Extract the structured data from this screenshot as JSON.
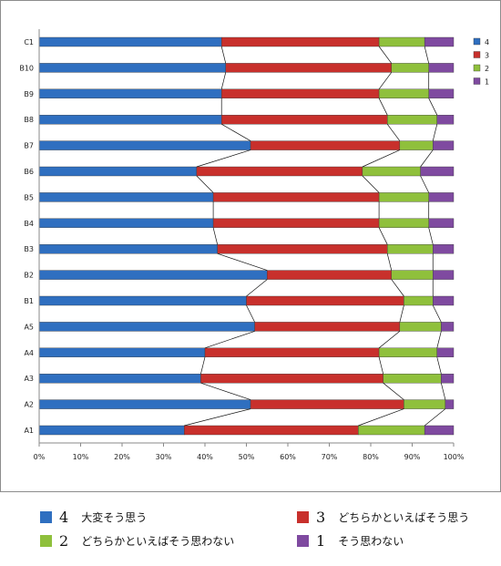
{
  "chart_data": {
    "type": "bar",
    "orientation": "horizontal",
    "stacked": "percent",
    "categories": [
      "C1",
      "B10",
      "B9",
      "B8",
      "B7",
      "B6",
      "B5",
      "B4",
      "B3",
      "B2",
      "B1",
      "A5",
      "A4",
      "A3",
      "A2",
      "A1"
    ],
    "series": [
      {
        "name": "4",
        "color": "#2f6fc0",
        "values": [
          44,
          45,
          44,
          44,
          51,
          38,
          42,
          42,
          43,
          55,
          50,
          52,
          40,
          39,
          51,
          35
        ]
      },
      {
        "name": "3",
        "color": "#c8302c",
        "values": [
          38,
          40,
          38,
          40,
          36,
          40,
          40,
          40,
          41,
          30,
          38,
          35,
          42,
          44,
          37,
          42
        ]
      },
      {
        "name": "2",
        "color": "#8fc03c",
        "values": [
          11,
          9,
          12,
          12,
          8,
          14,
          12,
          12,
          11,
          10,
          7,
          10,
          14,
          14,
          10,
          16
        ]
      },
      {
        "name": "1",
        "color": "#7f4aa0",
        "values": [
          7,
          6,
          6,
          4,
          5,
          8,
          6,
          6,
          5,
          5,
          5,
          3,
          4,
          3,
          2,
          7
        ]
      }
    ],
    "xlim": [
      0,
      100
    ],
    "x_ticks": [
      "0%",
      "10%",
      "20%",
      "30%",
      "40%",
      "50%",
      "60%",
      "70%",
      "80%",
      "90%",
      "100%"
    ],
    "series_lines": true,
    "grid": false,
    "legend_position": "right"
  },
  "legend_bottom": [
    {
      "num": "4",
      "text": "大変そう思う",
      "color": "#2f6fc0"
    },
    {
      "num": "3",
      "text": "どちらかといえばそう思う",
      "color": "#c8302c"
    },
    {
      "num": "2",
      "text": "どちらかといえばそう思わない",
      "color": "#8fc03c"
    },
    {
      "num": "1",
      "text": "そう思わない",
      "color": "#7f4aa0"
    }
  ]
}
